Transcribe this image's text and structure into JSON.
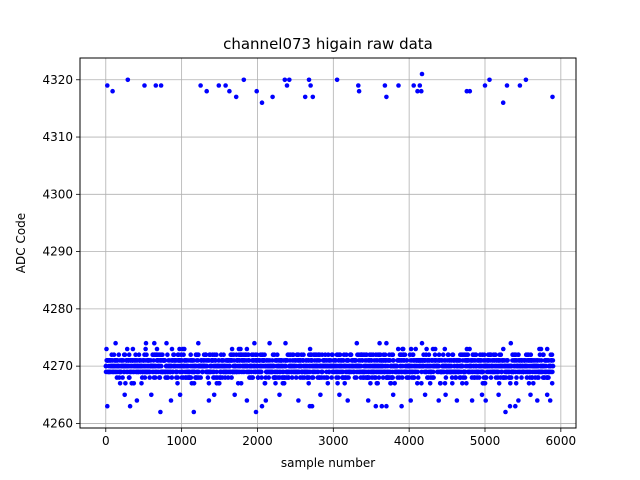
{
  "chart_data": {
    "type": "scatter",
    "title": "channel073 higain raw data",
    "xlabel": "sample number",
    "ylabel": "ADC Code",
    "xlim": [
      -340,
      6200
    ],
    "ylim": [
      4259.2,
      4323.8
    ],
    "xticks": [
      0,
      1000,
      2000,
      3000,
      4000,
      5000,
      6000
    ],
    "yticks": [
      4260,
      4270,
      4280,
      4290,
      4300,
      4310,
      4320
    ],
    "grid": true,
    "marker_color": "#0000ff",
    "series": [
      {
        "name": "",
        "band": {
          "x_start": 0,
          "x_end": 5900,
          "typical_min": 4267,
          "typical_max": 4273
        },
        "points": [
          [
            20,
            4319
          ],
          [
            90,
            4318
          ],
          [
            290,
            4320
          ],
          [
            510,
            4319
          ],
          [
            660,
            4319
          ],
          [
            730,
            4319
          ],
          [
            1250,
            4319
          ],
          [
            1330,
            4318
          ],
          [
            1490,
            4319
          ],
          [
            1580,
            4319
          ],
          [
            1630,
            4318
          ],
          [
            1720,
            4317
          ],
          [
            1820,
            4320
          ],
          [
            1990,
            4318
          ],
          [
            2060,
            4316
          ],
          [
            2200,
            4317
          ],
          [
            2360,
            4320
          ],
          [
            2390,
            4319
          ],
          [
            2420,
            4320
          ],
          [
            2630,
            4317
          ],
          [
            2680,
            4320
          ],
          [
            2700,
            4319
          ],
          [
            2730,
            4317
          ],
          [
            3050,
            4320
          ],
          [
            3330,
            4319
          ],
          [
            3340,
            4318
          ],
          [
            3680,
            4319
          ],
          [
            3700,
            4317
          ],
          [
            3860,
            4319
          ],
          [
            4060,
            4319
          ],
          [
            4110,
            4318
          ],
          [
            4140,
            4319
          ],
          [
            4170,
            4321
          ],
          [
            4160,
            4318
          ],
          [
            4760,
            4318
          ],
          [
            4800,
            4318
          ],
          [
            5000,
            4319
          ],
          [
            5060,
            4320
          ],
          [
            5240,
            4316
          ],
          [
            5290,
            4319
          ],
          [
            5460,
            4319
          ],
          [
            5540,
            4320
          ],
          [
            5890,
            4317
          ],
          [
            20,
            4263
          ],
          [
            320,
            4263
          ],
          [
            720,
            4262
          ],
          [
            1160,
            4262
          ],
          [
            1980,
            4262
          ],
          [
            2060,
            4263
          ],
          [
            2110,
            4264
          ],
          [
            2690,
            4263
          ],
          [
            2720,
            4263
          ],
          [
            3560,
            4263
          ],
          [
            3640,
            4263
          ],
          [
            3700,
            4263
          ],
          [
            3900,
            4263
          ],
          [
            5270,
            4262
          ],
          [
            5330,
            4263
          ],
          [
            5400,
            4263
          ],
          [
            5860,
            4264
          ],
          [
            130,
            4274
          ],
          [
            530,
            4274
          ],
          [
            640,
            4274
          ],
          [
            800,
            4274
          ],
          [
            1220,
            4274
          ],
          [
            1960,
            4274
          ],
          [
            2160,
            4274
          ],
          [
            2370,
            4274
          ],
          [
            3310,
            4274
          ],
          [
            3610,
            4274
          ],
          [
            3700,
            4274
          ],
          [
            4170,
            4274
          ],
          [
            5340,
            4274
          ],
          [
            410,
            4264
          ],
          [
            860,
            4264
          ],
          [
            1360,
            4264
          ],
          [
            1860,
            4264
          ],
          [
            2540,
            4264
          ],
          [
            3190,
            4264
          ],
          [
            3460,
            4264
          ],
          [
            4020,
            4264
          ],
          [
            4390,
            4264
          ],
          [
            4630,
            4264
          ],
          [
            4830,
            4264
          ],
          [
            5010,
            4264
          ],
          [
            5440,
            4264
          ],
          [
            5690,
            4264
          ],
          [
            250,
            4265
          ],
          [
            600,
            4265
          ],
          [
            980,
            4265
          ],
          [
            1430,
            4265
          ],
          [
            1700,
            4265
          ],
          [
            2290,
            4265
          ],
          [
            2830,
            4265
          ],
          [
            3080,
            4265
          ],
          [
            3790,
            4265
          ],
          [
            4210,
            4265
          ],
          [
            4480,
            4265
          ],
          [
            4960,
            4265
          ],
          [
            5180,
            4265
          ],
          [
            5600,
            4265
          ],
          [
            5820,
            4265
          ]
        ]
      }
    ]
  }
}
